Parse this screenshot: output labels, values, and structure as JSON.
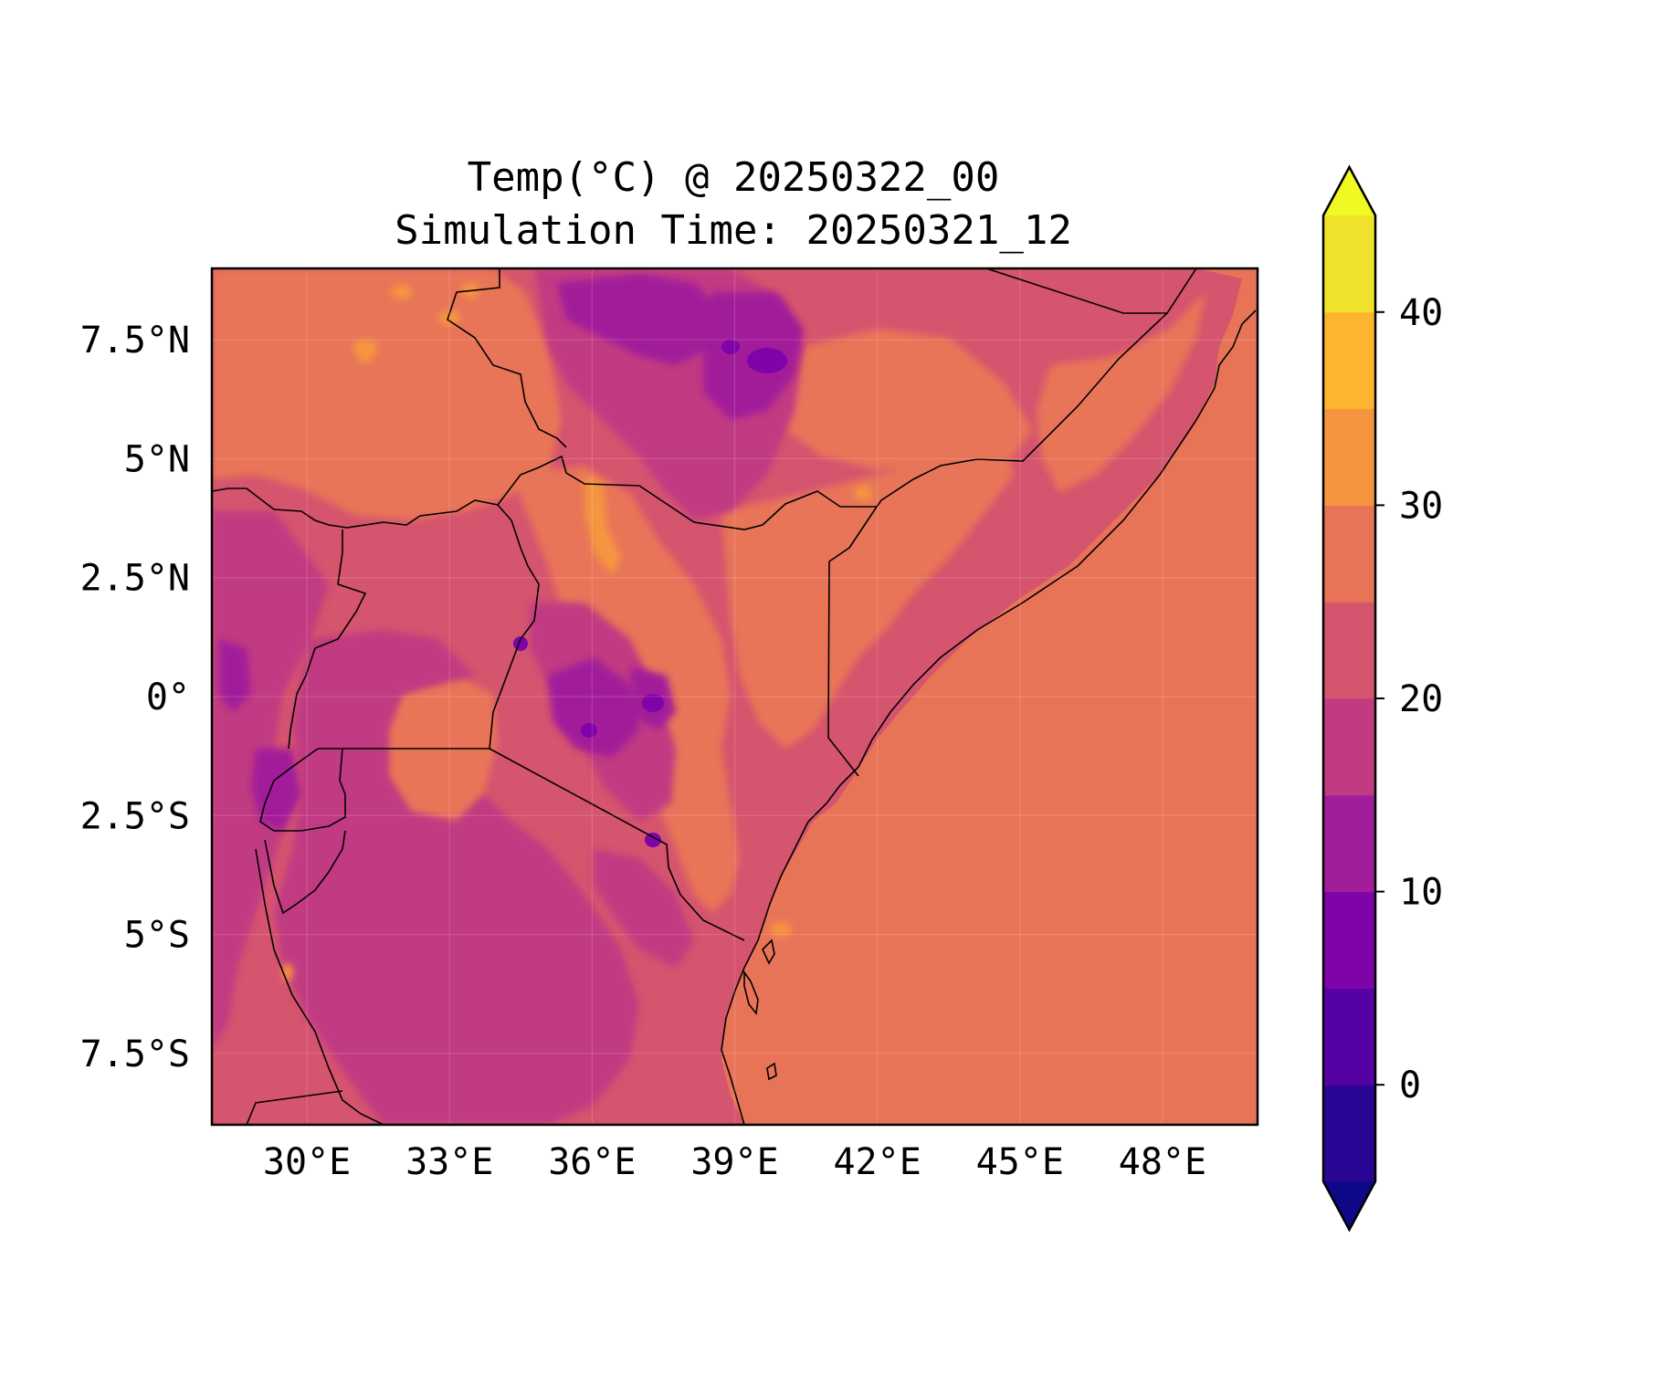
{
  "title": {
    "line1": "Temp(°C) @ 20250322_00",
    "line2": "Simulation Time: 20250321_12"
  },
  "map": {
    "lon_range": [
      28,
      50
    ],
    "lat_range": [
      -9,
      9
    ],
    "x_tick_labels": [
      "30°E",
      "33°E",
      "36°E",
      "39°E",
      "42°E",
      "45°E",
      "48°E"
    ],
    "x_ticks": [
      30,
      33,
      36,
      39,
      42,
      45,
      48
    ],
    "y_tick_labels": [
      "7.5°N",
      "5°N",
      "2.5°N",
      "0°",
      "2.5°S",
      "5°S",
      "7.5°S"
    ],
    "y_ticks": [
      7.5,
      5,
      2.5,
      0,
      -2.5,
      -5,
      -7.5
    ],
    "ocean_color": "#e87458",
    "land_base_color": "#d5546e"
  },
  "colorbar": {
    "levels": [
      -5,
      0,
      5,
      10,
      15,
      20,
      25,
      30,
      35,
      40,
      45
    ],
    "colors": [
      "#2a0594",
      "#5502a4",
      "#7e03a8",
      "#a21d9a",
      "#c13b82",
      "#d5546e",
      "#e87458",
      "#f69540",
      "#fdb42f",
      "#f0e22a"
    ],
    "under_color": "#0d0887",
    "over_color": "#f0f921",
    "tick_labels": [
      "0",
      "10",
      "20",
      "30",
      "40"
    ],
    "ticks": [
      0,
      10,
      20,
      30,
      40
    ]
  }
}
